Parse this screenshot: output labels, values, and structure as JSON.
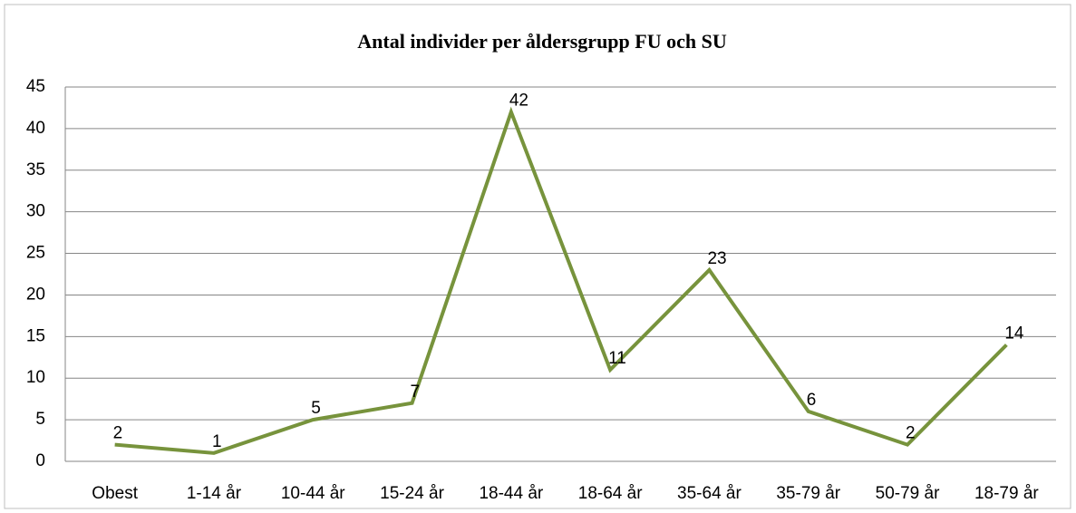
{
  "chart_data": {
    "type": "line",
    "title": "Antal individer per åldersgrupp  FU och SU",
    "categories": [
      "Obest",
      "1-14 år",
      "10-44 år",
      "15-24 år",
      "18-44 år",
      "18-64 år",
      "35-64 år",
      "35-79 år",
      "50-79 år",
      "18-79 år"
    ],
    "series": [
      {
        "name": "Antal",
        "color": "#77933c",
        "values": [
          2,
          1,
          5,
          7,
          42,
          11,
          23,
          6,
          2,
          14
        ]
      }
    ],
    "ylim": [
      0,
      45
    ],
    "yticks": [
      0,
      5,
      10,
      15,
      20,
      25,
      30,
      35,
      40,
      45
    ],
    "grid": true
  }
}
